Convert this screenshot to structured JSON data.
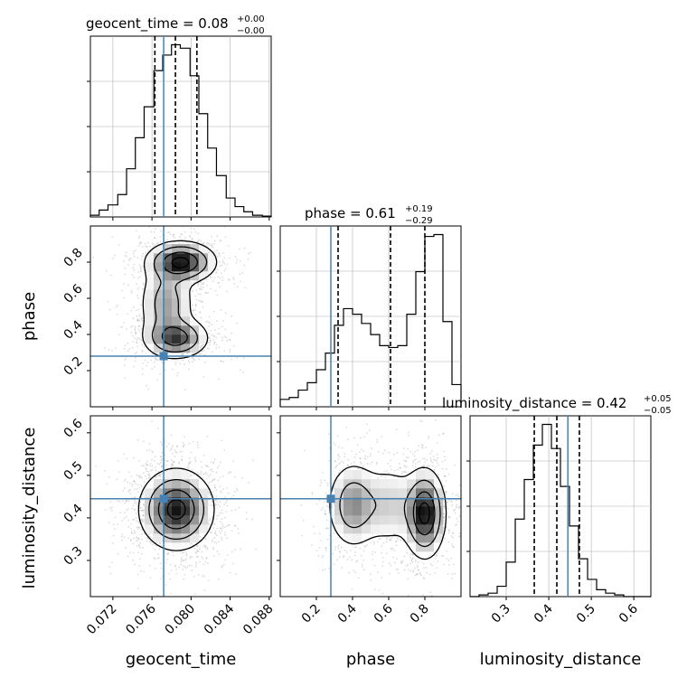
{
  "chart_data": {
    "type": "corner",
    "parameters": [
      "geocent_time",
      "phase",
      "luminosity_distance"
    ],
    "truths": {
      "geocent_time": 0.0772,
      "phase": 0.28,
      "luminosity_distance": 0.445
    },
    "colors": {
      "truth": "#4682b4",
      "hist": "#000000",
      "grid": "#b0b0b0",
      "quantile": "#000000"
    },
    "grid": true,
    "titles": [
      {
        "param": "geocent_time",
        "prefix": "geocent_time = 0.08",
        "plus": "+0.00",
        "minus": "−0.00"
      },
      {
        "param": "phase",
        "prefix": "phase = 0.61",
        "plus": "+0.19",
        "minus": "−0.29"
      },
      {
        "param": "luminosity_distance",
        "prefix": "luminosity_distance = 0.42",
        "plus": "+0.05",
        "minus": "−0.05"
      }
    ],
    "axes": {
      "geocent_time": {
        "label": "geocent_time",
        "range": [
          0.0697,
          0.0882
        ],
        "ticks": [
          0.072,
          0.076,
          0.08,
          0.084,
          0.088
        ],
        "tick_labels": [
          "0.072",
          "0.076",
          "0.080",
          "0.084",
          "0.088"
        ]
      },
      "phase": {
        "label": "phase",
        "range": [
          0.0,
          1.0
        ],
        "ticks": [
          0.2,
          0.4,
          0.6,
          0.8
        ],
        "tick_labels": [
          "0.2",
          "0.4",
          "0.6",
          "0.8"
        ]
      },
      "luminosity_distance": {
        "label": "luminosity_distance",
        "range": [
          0.215,
          0.64
        ],
        "ticks": [
          0.3,
          0.4,
          0.5,
          0.6
        ],
        "tick_labels": [
          "0.3",
          "0.4",
          "0.5",
          "0.6"
        ]
      }
    },
    "histograms": {
      "geocent_time": {
        "bin_edges": [
          0.0697,
          0.0706,
          0.0715,
          0.0725,
          0.0734,
          0.0743,
          0.0752,
          0.0762,
          0.0771,
          0.078,
          0.0789,
          0.0799,
          0.0808,
          0.0817,
          0.0826,
          0.0836,
          0.0845,
          0.0854,
          0.0863,
          0.0873,
          0.0882
        ],
        "counts": [
          0.01,
          0.04,
          0.07,
          0.13,
          0.28,
          0.46,
          0.64,
          0.85,
          0.94,
          1.0,
          0.98,
          0.82,
          0.6,
          0.4,
          0.24,
          0.11,
          0.06,
          0.03,
          0.01,
          0.005
        ],
        "quantiles": [
          0.0763,
          0.0784,
          0.0806
        ]
      },
      "phase": {
        "bin_edges": [
          0.0,
          0.05,
          0.1,
          0.15,
          0.2,
          0.25,
          0.3,
          0.35,
          0.4,
          0.45,
          0.5,
          0.55,
          0.6,
          0.65,
          0.7,
          0.75,
          0.8,
          0.85,
          0.9,
          0.95,
          1.0
        ],
        "counts": [
          0.04,
          0.05,
          0.09,
          0.13,
          0.2,
          0.29,
          0.44,
          0.53,
          0.5,
          0.45,
          0.39,
          0.33,
          0.32,
          0.33,
          0.5,
          0.73,
          0.92,
          0.93,
          0.46,
          0.12
        ],
        "quantiles": [
          0.32,
          0.61,
          0.8
        ]
      },
      "luminosity_distance": {
        "bin_edges": [
          0.215,
          0.2363,
          0.2575,
          0.2788,
          0.3,
          0.3213,
          0.3425,
          0.3638,
          0.385,
          0.4063,
          0.4275,
          0.4488,
          0.47,
          0.4913,
          0.5125,
          0.5338,
          0.555,
          0.5763,
          0.5975,
          0.6188,
          0.64
        ],
        "counts": [
          0.0,
          0.01,
          0.02,
          0.06,
          0.2,
          0.45,
          0.68,
          0.88,
          1.0,
          0.86,
          0.64,
          0.41,
          0.22,
          0.1,
          0.04,
          0.02,
          0.01,
          0.0,
          0.0,
          0.0
        ],
        "quantiles": [
          0.366,
          0.419,
          0.472
        ]
      }
    },
    "pairs": [
      {
        "x": "geocent_time",
        "y": "phase",
        "modes": [
          {
            "mx": 0.079,
            "my": 0.8,
            "sx": 0.0017,
            "sy": 0.055,
            "w": 1.0
          },
          {
            "mx": 0.0785,
            "my": 0.38,
            "sx": 0.0016,
            "sy": 0.055,
            "w": 0.75
          },
          {
            "mx": 0.0775,
            "my": 0.57,
            "sx": 0.0014,
            "sy": 0.12,
            "w": 0.45
          }
        ]
      },
      {
        "x": "geocent_time",
        "y": "luminosity_distance",
        "modes": [
          {
            "mx": 0.0785,
            "my": 0.42,
            "sx": 0.0018,
            "sy": 0.045,
            "w": 1.0
          }
        ]
      },
      {
        "x": "phase",
        "y": "luminosity_distance",
        "modes": [
          {
            "mx": 0.8,
            "my": 0.41,
            "sx": 0.055,
            "sy": 0.05,
            "w": 1.0
          },
          {
            "mx": 0.4,
            "my": 0.43,
            "sx": 0.07,
            "sy": 0.05,
            "w": 0.5
          },
          {
            "mx": 0.6,
            "my": 0.43,
            "sx": 0.1,
            "sy": 0.05,
            "w": 0.28
          }
        ]
      }
    ]
  }
}
